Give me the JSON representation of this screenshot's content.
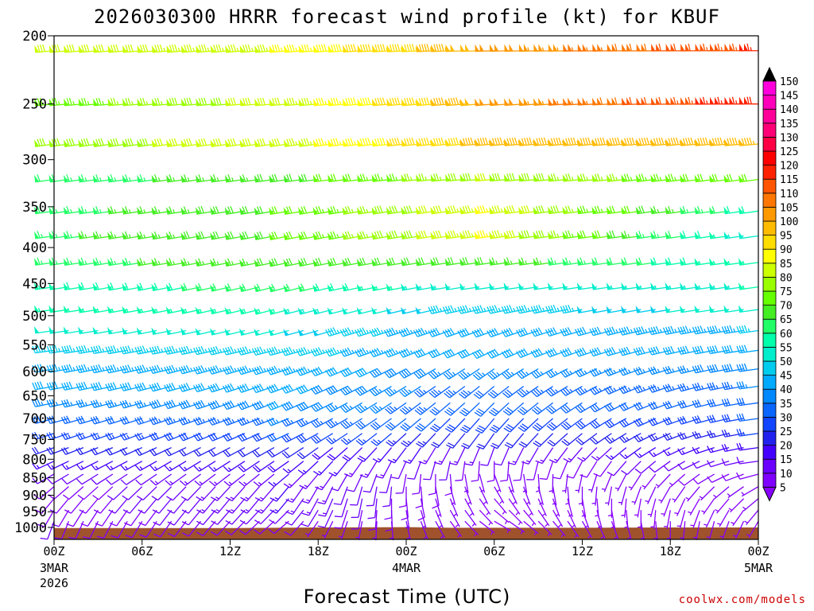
{
  "chart_data": {
    "type": "wind-barb-profile",
    "title": "2026030300 HRRR forecast wind profile (kt) for KBUF",
    "xlabel": "Forecast Time (UTC)",
    "ylabel": "",
    "credit": "coolwx.com/models",
    "y_axis": {
      "scale": "log-pressure",
      "unit": "hPa",
      "ylim": [
        1040,
        200
      ],
      "ticks": [
        "200",
        "250",
        "300",
        "350",
        "400",
        "450",
        "500",
        "550",
        "600",
        "650",
        "700",
        "750",
        "800",
        "850",
        "900",
        "950",
        "1000"
      ],
      "tick_values": [
        200,
        250,
        300,
        350,
        400,
        450,
        500,
        550,
        600,
        650,
        700,
        750,
        800,
        850,
        900,
        950,
        1000
      ]
    },
    "x_axis": {
      "unit": "forecast hour",
      "xlim": [
        0,
        48
      ],
      "ticks": [
        {
          "hour": 0,
          "label": "00Z",
          "sub1": "3MAR",
          "sub2": "2026"
        },
        {
          "hour": 6,
          "label": "06Z",
          "sub1": "",
          "sub2": ""
        },
        {
          "hour": 12,
          "label": "12Z",
          "sub1": "",
          "sub2": ""
        },
        {
          "hour": 18,
          "label": "18Z",
          "sub1": "",
          "sub2": ""
        },
        {
          "hour": 24,
          "label": "00Z",
          "sub1": "4MAR",
          "sub2": ""
        },
        {
          "hour": 30,
          "label": "06Z",
          "sub1": "",
          "sub2": ""
        },
        {
          "hour": 36,
          "label": "12Z",
          "sub1": "",
          "sub2": ""
        },
        {
          "hour": 42,
          "label": "18Z",
          "sub1": "",
          "sub2": ""
        },
        {
          "hour": 48,
          "label": "00Z",
          "sub1": "5MAR",
          "sub2": ""
        }
      ]
    },
    "colorbar": {
      "unit": "kt",
      "levels": [
        5,
        10,
        15,
        20,
        25,
        30,
        35,
        40,
        45,
        50,
        55,
        60,
        65,
        70,
        75,
        80,
        85,
        90,
        95,
        100,
        105,
        110,
        115,
        120,
        125,
        130,
        135,
        140,
        145,
        150
      ],
      "labels": [
        "5",
        "10",
        "15",
        "20",
        "25",
        "30",
        "35",
        "40",
        "45",
        "50",
        "55",
        "60",
        "65",
        "70",
        "75",
        "80",
        "85",
        "90",
        "95",
        "100",
        "105",
        "110",
        "115",
        "120",
        "125",
        "130",
        "135",
        "140",
        "145",
        "150"
      ],
      "colors": [
        "#7f00ff",
        "#6a00ff",
        "#4400ff",
        "#2222ee",
        "#1144ff",
        "#0a66ff",
        "#0088ff",
        "#00aaff",
        "#00ccee",
        "#00eecc",
        "#00ffaa",
        "#22ff66",
        "#44ee22",
        "#66ff00",
        "#99ff00",
        "#ccff00",
        "#ffff00",
        "#ffdd00",
        "#ffbb00",
        "#ff9900",
        "#ff7700",
        "#ff5500",
        "#ff2200",
        "#ff0000",
        "#ff0044",
        "#ff0077",
        "#ff0099",
        "#ff00bb",
        "#ff00dd",
        "#ff00ff"
      ],
      "under_color": "#8800ff",
      "over_color": "#000000"
    },
    "surface_fill": "#a0522d",
    "surface_pressure": [
      {
        "hour": 0,
        "hPa": 1002
      },
      {
        "hour": 12,
        "hPa": 1002
      },
      {
        "hour": 18,
        "hPa": 1000
      },
      {
        "hour": 24,
        "hPa": 999
      },
      {
        "hour": 27,
        "hPa": 1001
      },
      {
        "hour": 36,
        "hPa": 1001
      },
      {
        "hour": 42,
        "hPa": 1000
      },
      {
        "hour": 48,
        "hPa": 1000
      }
    ],
    "barb_times_hours": [
      0,
      1,
      2,
      3,
      4,
      5,
      6,
      7,
      8,
      9,
      10,
      11,
      12,
      13,
      14,
      15,
      16,
      17,
      18,
      19,
      20,
      21,
      22,
      23,
      24,
      25,
      26,
      27,
      28,
      29,
      30,
      31,
      32,
      33,
      34,
      35,
      36,
      37,
      38,
      39,
      40,
      41,
      42,
      43,
      44,
      45,
      46,
      47,
      48
    ],
    "levels": [
      {
        "hPa": 210,
        "dir_deg": [
          265,
          265,
          268,
          270
        ],
        "speed_kt": [
          80,
          85,
          100,
          115
        ]
      },
      {
        "hPa": 250,
        "dir_deg": [
          265,
          265,
          265,
          270
        ],
        "speed_kt": [
          72,
          82,
          100,
          118
        ]
      },
      {
        "hPa": 285,
        "dir_deg": [
          262,
          262,
          265,
          265
        ],
        "speed_kt": [
          78,
          82,
          97,
          95
        ]
      },
      {
        "hPa": 320,
        "dir_deg": [
          262,
          262,
          265,
          262
        ],
        "speed_kt": [
          62,
          68,
          80,
          70
        ]
      },
      {
        "hPa": 355,
        "dir_deg": [
          262,
          260,
          262,
          262
        ],
        "speed_kt": [
          63,
          70,
          85,
          58
        ]
      },
      {
        "hPa": 385,
        "dir_deg": [
          262,
          258,
          262,
          262
        ],
        "speed_kt": [
          64,
          70,
          85,
          52
        ]
      },
      {
        "hPa": 420,
        "dir_deg": [
          262,
          258,
          262,
          262
        ],
        "speed_kt": [
          63,
          68,
          68,
          55
        ]
      },
      {
        "hPa": 455,
        "dir_deg": [
          262,
          255,
          262,
          262
        ],
        "speed_kt": [
          57,
          62,
          50,
          55
        ]
      },
      {
        "hPa": 490,
        "dir_deg": [
          262,
          255,
          258,
          262
        ],
        "speed_kt": [
          55,
          55,
          45,
          52
        ]
      },
      {
        "hPa": 525,
        "dir_deg": [
          262,
          255,
          250,
          262
        ],
        "speed_kt": [
          50,
          50,
          40,
          45
        ]
      },
      {
        "hPa": 560,
        "dir_deg": [
          262,
          255,
          245,
          262
        ],
        "speed_kt": [
          47,
          47,
          40,
          42
        ]
      },
      {
        "hPa": 595,
        "dir_deg": [
          260,
          252,
          235,
          262
        ],
        "speed_kt": [
          43,
          44,
          35,
          38
        ]
      },
      {
        "hPa": 630,
        "dir_deg": [
          260,
          250,
          230,
          262
        ],
        "speed_kt": [
          40,
          42,
          32,
          35
        ]
      },
      {
        "hPa": 665,
        "dir_deg": [
          258,
          248,
          225,
          262
        ],
        "speed_kt": [
          35,
          40,
          30,
          32
        ]
      },
      {
        "hPa": 700,
        "dir_deg": [
          255,
          248,
          220,
          262
        ],
        "speed_kt": [
          30,
          35,
          28,
          30
        ]
      },
      {
        "hPa": 735,
        "dir_deg": [
          252,
          245,
          215,
          262
        ],
        "speed_kt": [
          25,
          30,
          20,
          25
        ]
      },
      {
        "hPa": 770,
        "dir_deg": [
          250,
          240,
          200,
          262
        ],
        "speed_kt": [
          20,
          22,
          12,
          18
        ]
      },
      {
        "hPa": 805,
        "dir_deg": [
          245,
          235,
          180,
          262
        ],
        "speed_kt": [
          15,
          18,
          8,
          12
        ]
      },
      {
        "hPa": 840,
        "dir_deg": [
          240,
          230,
          160,
          255
        ],
        "speed_kt": [
          10,
          15,
          6,
          8
        ]
      },
      {
        "hPa": 875,
        "dir_deg": [
          230,
          220,
          150,
          240
        ],
        "speed_kt": [
          8,
          15,
          5,
          6
        ]
      },
      {
        "hPa": 910,
        "dir_deg": [
          220,
          220,
          140,
          230
        ],
        "speed_kt": [
          8,
          15,
          4,
          5
        ]
      },
      {
        "hPa": 945,
        "dir_deg": [
          210,
          225,
          130,
          220
        ],
        "speed_kt": [
          8,
          12,
          4,
          5
        ]
      },
      {
        "hPa": 980,
        "dir_deg": [
          200,
          230,
          120,
          210
        ],
        "speed_kt": [
          10,
          8,
          4,
          4
        ]
      }
    ],
    "key_hours": [
      0,
      16,
      30,
      48
    ]
  }
}
